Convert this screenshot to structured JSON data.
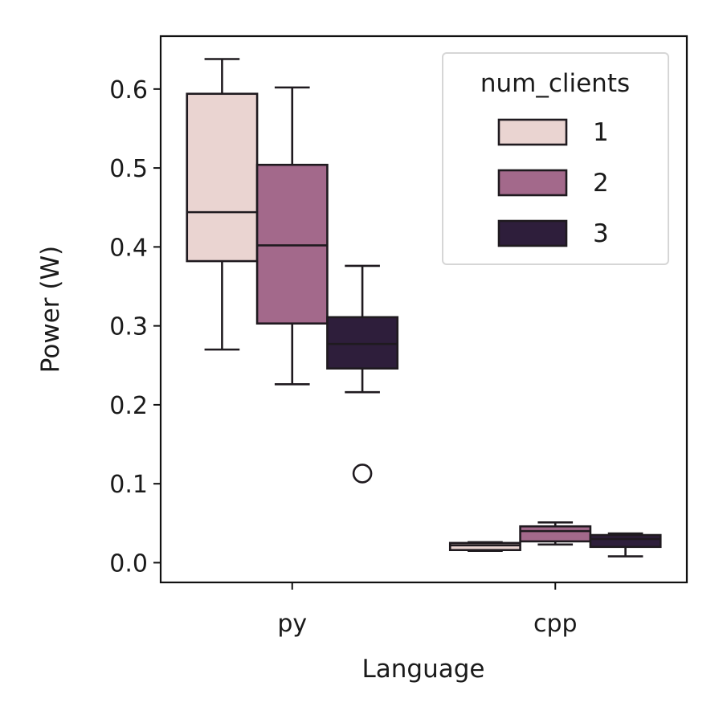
{
  "chart_data": {
    "type": "box",
    "xlabel": "Language",
    "ylabel": "Power (W)",
    "ylim": [
      -0.025,
      0.667
    ],
    "yticks": [
      0.0,
      0.1,
      0.2,
      0.3,
      0.4,
      0.5,
      0.6
    ],
    "ytick_labels": [
      "0.0",
      "0.1",
      "0.2",
      "0.3",
      "0.4",
      "0.5",
      "0.6"
    ],
    "categories": [
      "py",
      "cpp"
    ],
    "legend": {
      "title": "num_clients",
      "position": "top-right"
    },
    "series": [
      {
        "name": "1",
        "color": "#ead4d1",
        "boxes": [
          {
            "category": "py",
            "whisker_low": 0.27,
            "q1": 0.382,
            "median": 0.444,
            "q3": 0.594,
            "whisker_high": 0.638,
            "outliers": []
          },
          {
            "category": "cpp",
            "whisker_low": 0.015,
            "q1": 0.016,
            "median": 0.022,
            "q3": 0.025,
            "whisker_high": 0.026,
            "outliers": []
          }
        ]
      },
      {
        "name": "2",
        "color": "#a3698b",
        "boxes": [
          {
            "category": "py",
            "whisker_low": 0.226,
            "q1": 0.303,
            "median": 0.402,
            "q3": 0.504,
            "whisker_high": 0.602,
            "outliers": []
          },
          {
            "category": "cpp",
            "whisker_low": 0.023,
            "q1": 0.027,
            "median": 0.04,
            "q3": 0.046,
            "whisker_high": 0.051,
            "outliers": []
          }
        ]
      },
      {
        "name": "3",
        "color": "#2e1e3b",
        "boxes": [
          {
            "category": "py",
            "whisker_low": 0.216,
            "q1": 0.246,
            "median": 0.277,
            "q3": 0.311,
            "whisker_high": 0.376,
            "outliers": [
              0.113
            ]
          },
          {
            "category": "cpp",
            "whisker_low": 0.008,
            "q1": 0.02,
            "median": 0.03,
            "q3": 0.035,
            "whisker_high": 0.037,
            "outliers": []
          }
        ]
      }
    ]
  }
}
